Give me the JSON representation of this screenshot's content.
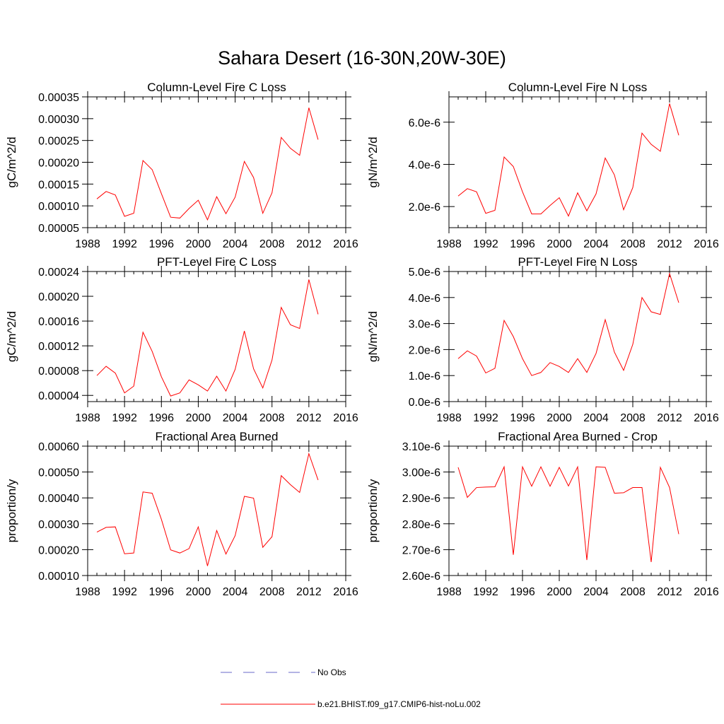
{
  "figure": {
    "title": "Sahara Desert (16-30N,20W-30E)"
  },
  "legend": {
    "obs_label": "No Obs",
    "obs_color": "#6a6ac8",
    "model_label": "b.e21.BHIST.f09_g17.CMIP6-hist-noLu.002",
    "model_color": "#ff0000"
  },
  "chart_data": [
    {
      "type": "line",
      "title": "Column-Level Fire C Loss",
      "ylabel": "gC/m^2/d",
      "xlim": [
        1988,
        2016
      ],
      "xticks": [
        1988,
        1992,
        1996,
        2000,
        2004,
        2008,
        2012,
        2016
      ],
      "ylim": [
        5e-05,
        0.00035
      ],
      "yticks": [
        5e-05,
        0.0001,
        0.00015,
        0.0002,
        0.00025,
        0.0003,
        0.00035
      ],
      "ytick_labels": [
        "0.00005",
        "0.00010",
        "0.00015",
        "0.00020",
        "0.00025",
        "0.00030",
        "0.00035"
      ],
      "x": [
        1989,
        1990,
        1991,
        1992,
        1993,
        1994,
        1995,
        1996,
        1997,
        1998,
        1999,
        2000,
        2001,
        2002,
        2003,
        2004,
        2005,
        2006,
        2007,
        2008,
        2009,
        2010,
        2011,
        2012,
        2013
      ],
      "series": [
        {
          "name": "b.e21.BHIST.f09_g17.CMIP6-hist-noLu.002",
          "color": "#ff0000",
          "values": [
            0.000116,
            0.000133,
            0.000125,
            7.6e-05,
            8.3e-05,
            0.000204,
            0.000183,
            0.000128,
            7.4e-05,
            7.2e-05,
            9.4e-05,
            0.000113,
            6.8e-05,
            0.000121,
            8.2e-05,
            0.00012,
            0.000202,
            0.000165,
            8.3e-05,
            0.00013,
            0.000257,
            0.000232,
            0.000216,
            0.000325,
            0.000252
          ]
        }
      ]
    },
    {
      "type": "line",
      "title": "Column-Level Fire N Loss",
      "ylabel": "gN/m^2/d",
      "xlim": [
        1988,
        2016
      ],
      "xticks": [
        1988,
        1992,
        1996,
        2000,
        2004,
        2008,
        2012,
        2016
      ],
      "ylim": [
        1e-06,
        7.2e-06
      ],
      "yticks": [
        2e-06,
        4e-06,
        6e-06
      ],
      "ytick_labels": [
        "2.0e-6",
        "4.0e-6",
        "6.0e-6"
      ],
      "x": [
        1989,
        1990,
        1991,
        1992,
        1993,
        1994,
        1995,
        1996,
        1997,
        1998,
        1999,
        2000,
        2001,
        2002,
        2003,
        2004,
        2005,
        2006,
        2007,
        2008,
        2009,
        2010,
        2011,
        2012,
        2013
      ],
      "series": [
        {
          "name": "b.e21.BHIST.f09_g17.CMIP6-hist-noLu.002",
          "color": "#ff0000",
          "values": [
            2.5e-06,
            2.85e-06,
            2.7e-06,
            1.68e-06,
            1.82e-06,
            4.35e-06,
            3.9e-06,
            2.7e-06,
            1.65e-06,
            1.65e-06,
            2.05e-06,
            2.42e-06,
            1.55e-06,
            2.65e-06,
            1.8e-06,
            2.6e-06,
            4.3e-06,
            3.5e-06,
            1.85e-06,
            2.9e-06,
            5.48e-06,
            4.95e-06,
            4.62e-06,
            6.88e-06,
            5.38e-06
          ]
        }
      ]
    },
    {
      "type": "line",
      "title": "PFT-Level Fire C Loss",
      "ylabel": "gC/m^2/d",
      "xlim": [
        1988,
        2016
      ],
      "xticks": [
        1988,
        1992,
        1996,
        2000,
        2004,
        2008,
        2012,
        2016
      ],
      "ylim": [
        3e-05,
        0.00024
      ],
      "yticks": [
        4e-05,
        8e-05,
        0.00012,
        0.00016,
        0.0002,
        0.00024
      ],
      "ytick_labels": [
        "0.00004",
        "0.00008",
        "0.00012",
        "0.00016",
        "0.00020",
        "0.00024"
      ],
      "x": [
        1989,
        1990,
        1991,
        1992,
        1993,
        1994,
        1995,
        1996,
        1997,
        1998,
        1999,
        2000,
        2001,
        2002,
        2003,
        2004,
        2005,
        2006,
        2007,
        2008,
        2009,
        2010,
        2011,
        2012,
        2013
      ],
      "series": [
        {
          "name": "b.e21.BHIST.f09_g17.CMIP6-hist-noLu.002",
          "color": "#ff0000",
          "values": [
            7.2e-05,
            8.7e-05,
            7.6e-05,
            4.4e-05,
            5.5e-05,
            0.000142,
            0.000111,
            7e-05,
            3.9e-05,
            4.4e-05,
            6.5e-05,
            5.7e-05,
            4.7e-05,
            7.1e-05,
            4.7e-05,
            8.2e-05,
            0.000144,
            8.3e-05,
            5.2e-05,
            9.7e-05,
            0.000182,
            0.000154,
            0.000148,
            0.000227,
            0.000171
          ]
        }
      ]
    },
    {
      "type": "line",
      "title": "PFT-Level Fire N Loss",
      "ylabel": "gN/m^2/d",
      "xlim": [
        1988,
        2016
      ],
      "xticks": [
        1988,
        1992,
        1996,
        2000,
        2004,
        2008,
        2012,
        2016
      ],
      "ylim": [
        0,
        5e-06
      ],
      "yticks": [
        0,
        1e-06,
        2e-06,
        3e-06,
        4e-06,
        5e-06
      ],
      "ytick_labels": [
        "0.0e-6",
        "1.0e-6",
        "2.0e-6",
        "3.0e-6",
        "4.0e-6",
        "5.0e-6"
      ],
      "x": [
        1989,
        1990,
        1991,
        1992,
        1993,
        1994,
        1995,
        1996,
        1997,
        1998,
        1999,
        2000,
        2001,
        2002,
        2003,
        2004,
        2005,
        2006,
        2007,
        2008,
        2009,
        2010,
        2011,
        2012,
        2013
      ],
      "series": [
        {
          "name": "b.e21.BHIST.f09_g17.CMIP6-hist-noLu.002",
          "color": "#ff0000",
          "values": [
            1.65e-06,
            1.95e-06,
            1.75e-06,
            1.1e-06,
            1.28e-06,
            3.12e-06,
            2.5e-06,
            1.65e-06,
            1e-06,
            1.12e-06,
            1.5e-06,
            1.35e-06,
            1.12e-06,
            1.65e-06,
            1.12e-06,
            1.85e-06,
            3.15e-06,
            1.9e-06,
            1.2e-06,
            2.2e-06,
            4e-06,
            3.45e-06,
            3.35e-06,
            4.92e-06,
            3.8e-06
          ]
        }
      ]
    },
    {
      "type": "line",
      "title": "Fractional Area Burned",
      "ylabel": "proportion/y",
      "xlim": [
        1988,
        2016
      ],
      "xticks": [
        1988,
        1992,
        1996,
        2000,
        2004,
        2008,
        2012,
        2016
      ],
      "ylim": [
        0.0001,
        0.0006
      ],
      "yticks": [
        0.0001,
        0.0002,
        0.0003,
        0.0004,
        0.0005,
        0.0006
      ],
      "ytick_labels": [
        "0.00010",
        "0.00020",
        "0.00030",
        "0.00040",
        "0.00050",
        "0.00060"
      ],
      "x": [
        1989,
        1990,
        1991,
        1992,
        1993,
        1994,
        1995,
        1996,
        1997,
        1998,
        1999,
        2000,
        2001,
        2002,
        2003,
        2004,
        2005,
        2006,
        2007,
        2008,
        2009,
        2010,
        2011,
        2012,
        2013
      ],
      "series": [
        {
          "name": "b.e21.BHIST.f09_g17.CMIP6-hist-noLu.002",
          "color": "#ff0000",
          "values": [
            0.000268,
            0.000286,
            0.000288,
            0.000184,
            0.000187,
            0.000423,
            0.000418,
            0.000317,
            0.000199,
            0.000187,
            0.000204,
            0.000288,
            0.000137,
            0.000274,
            0.000183,
            0.000254,
            0.000406,
            0.000399,
            0.000209,
            0.00025,
            0.000486,
            0.000451,
            0.000421,
            0.000571,
            0.000469
          ]
        }
      ]
    },
    {
      "type": "line",
      "title": "Fractional Area Burned - Crop",
      "ylabel": "proportion/y",
      "xlim": [
        1988,
        2016
      ],
      "xticks": [
        1988,
        1992,
        1996,
        2000,
        2004,
        2008,
        2012,
        2016
      ],
      "ylim": [
        2.6e-06,
        3.1e-06
      ],
      "yticks": [
        2.6e-06,
        2.7e-06,
        2.8e-06,
        2.9e-06,
        3e-06,
        3.1e-06
      ],
      "ytick_labels": [
        "2.60e-6",
        "2.70e-6",
        "2.80e-6",
        "2.90e-6",
        "3.00e-6",
        "3.10e-6"
      ],
      "x": [
        1989,
        1990,
        1991,
        1992,
        1993,
        1994,
        1995,
        1996,
        1997,
        1998,
        1999,
        2000,
        2001,
        2002,
        2003,
        2004,
        2005,
        2006,
        2007,
        2008,
        2009,
        2010,
        2011,
        2012,
        2013
      ],
      "series": [
        {
          "name": "b.e21.BHIST.f09_g17.CMIP6-hist-noLu.002",
          "color": "#ff0000",
          "values": [
            3.018e-06,
            2.902e-06,
            2.94e-06,
            2.942e-06,
            2.943e-06,
            3.02e-06,
            2.68e-06,
            3.02e-06,
            2.945e-06,
            3.02e-06,
            2.945e-06,
            3.018e-06,
            2.946e-06,
            3.02e-06,
            2.66e-06,
            3.02e-06,
            3.018e-06,
            2.918e-06,
            2.92e-06,
            2.94e-06,
            2.94e-06,
            2.652e-06,
            3.018e-06,
            2.94e-06,
            2.76e-06
          ]
        }
      ]
    }
  ]
}
